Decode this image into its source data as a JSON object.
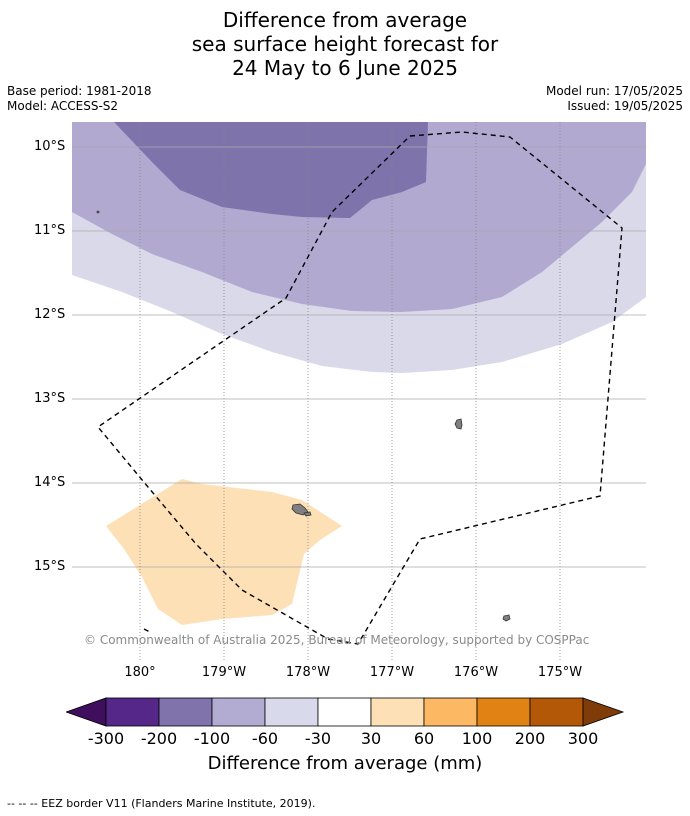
{
  "title": {
    "line1": "Difference from average",
    "line2": "sea surface height forecast for",
    "line3": "24 May to 6 June 2025"
  },
  "meta": {
    "base_period": "Base period: 1981-2018",
    "model": "Model: ACCESS-S2",
    "model_run": "Model run: 17/05/2025",
    "issued": "Issued: 19/05/2025"
  },
  "map": {
    "lat_labels": [
      "10°S",
      "11°S",
      "12°S",
      "13°S",
      "14°S",
      "15°S"
    ],
    "lon_labels": [
      "180°",
      "179°W",
      "178°W",
      "177°W",
      "176°W",
      "175°W"
    ],
    "credit": "© Commonwealth of Australia 2025, Bureau of Meteorology, supported by COSPPac",
    "colors": {
      "band_-200_-100": "#7f73ac",
      "band_-100_-60": "#b1a9d0",
      "band_-60_-30": "#d9d9ea",
      "band_30_60": "#fee0b6",
      "land": "#808080",
      "eez_line": "#000000",
      "grid": "#aaaaaa"
    }
  },
  "colorbar": {
    "labels": [
      "-300",
      "-200",
      "-100",
      "-60",
      "-30",
      "30",
      "60",
      "100",
      "200",
      "300"
    ],
    "colors": [
      "#3f0f5e",
      "#542788",
      "#8073ac",
      "#b2abd2",
      "#d8daeb",
      "#ffffff",
      "#fee0b6",
      "#fdb863",
      "#e08214",
      "#b35806",
      "#7f3b08"
    ],
    "title": "Difference from average (mm)"
  },
  "footer": "--  --  -- EEZ border V11 (Flanders Marine Institute, 2019)."
}
